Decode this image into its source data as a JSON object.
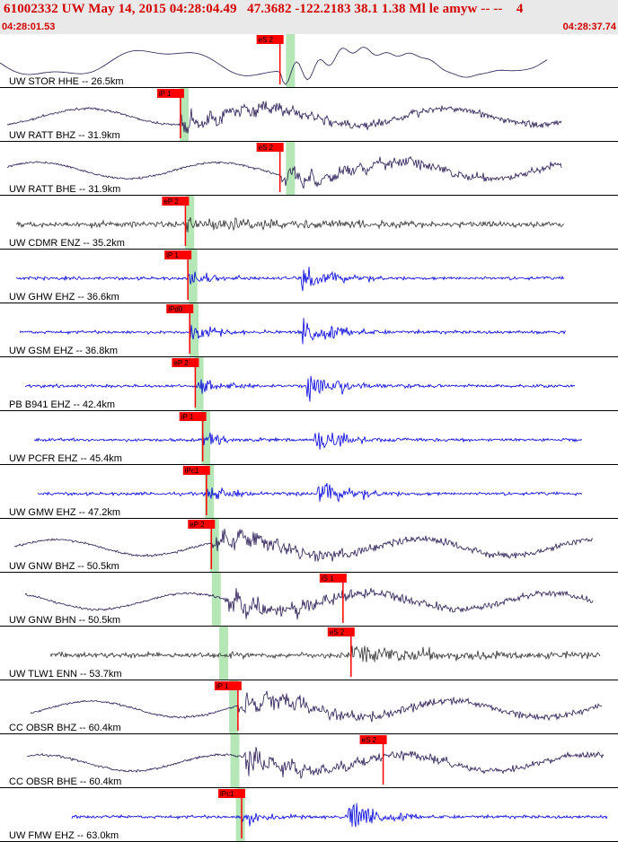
{
  "header": {
    "title": "61002332 UW May 14, 2015 04:28:04.49   47.3682 -122.2183 38.1 1.38 Ml le amyw -- --    4",
    "time_start": "04:28:01.53",
    "time_end": "04:28:37.74"
  },
  "colors": {
    "header_bg": "#e9e9e9",
    "title": "#d40000",
    "pick": "#ff0000",
    "band": "#b5e6b5",
    "trace_dark": "#2a1a55",
    "trace_blue": "#0000dd",
    "trace_gray": "#333333",
    "separator": "#000000"
  },
  "chart_data": {
    "type": "line",
    "x_range": [
      "04:28:01.53",
      "04:28:37.74"
    ],
    "traces": [
      {
        "label": "UW STOR HHE -- 26.5km",
        "style": "smooth",
        "color": "dark",
        "pick": "eS 2",
        "pick_pos": 0.453,
        "band_pos": 0.47
      },
      {
        "label": "UW RATT BHZ -- 31.9km",
        "style": "wavy",
        "color": "dark",
        "pick": "iP 1",
        "pick_pos": 0.292,
        "band_pos": 0.298
      },
      {
        "label": "UW RATT BHE -- 31.9km",
        "style": "wavy",
        "color": "dark",
        "pick": "eS 2",
        "pick_pos": 0.453,
        "band_pos": 0.47
      },
      {
        "label": "UW CDMR ENZ -- 35.2km",
        "style": "noise",
        "color": "gray",
        "pick": "eP 2",
        "pick_pos": 0.3,
        "band_pos": 0.307
      },
      {
        "label": "UW GHW EHZ -- 36.6km",
        "style": "event",
        "color": "blue",
        "pick": "iP 1",
        "pick_pos": 0.304,
        "band_pos": 0.312
      },
      {
        "label": "UW GSM EHZ -- 36.8km",
        "style": "event",
        "color": "blue",
        "pick": "iPd0",
        "pick_pos": 0.307,
        "band_pos": 0.314
      },
      {
        "label": "PB B941 EHZ -- 42.4km",
        "style": "event",
        "color": "blue",
        "pick": "eP 2",
        "pick_pos": 0.316,
        "band_pos": 0.322
      },
      {
        "label": "UW PCFR EHZ -- 45.4km",
        "style": "event",
        "color": "blue",
        "pick": "iP 1",
        "pick_pos": 0.328,
        "band_pos": 0.333
      },
      {
        "label": "UW GMW EHZ -- 47.2km",
        "style": "event",
        "color": "blue",
        "pick": "iPc1",
        "pick_pos": 0.334,
        "band_pos": 0.339
      },
      {
        "label": "UW GNW BHZ -- 50.5km",
        "style": "wavy",
        "color": "dark",
        "pick": "eP 2",
        "pick_pos": 0.342,
        "band_pos": 0.347
      },
      {
        "label": "UW GNW BHN -- 50.5km",
        "style": "wavy",
        "color": "dark",
        "pick": "iS 1",
        "pick_pos": 0.555,
        "band_pos": 0.35
      },
      {
        "label": "UW TLW1 ENN -- 53.7km",
        "style": "noise",
        "color": "gray",
        "pick": "eS 2",
        "pick_pos": 0.568,
        "band_pos": 0.362
      },
      {
        "label": "CC OBSR BHZ -- 60.4km",
        "style": "wavy",
        "color": "dark",
        "pick": "iP 1",
        "pick_pos": 0.385,
        "band_pos": 0.378
      },
      {
        "label": "CC OBSR BHE -- 60.4km",
        "style": "wavy",
        "color": "dark",
        "pick": "eS 2",
        "pick_pos": 0.62,
        "band_pos": 0.38
      },
      {
        "label": "UW FMW EHZ -- 63.0km",
        "style": "event",
        "color": "blue",
        "pick": "iPc1",
        "pick_pos": 0.391,
        "band_pos": 0.389
      }
    ]
  }
}
